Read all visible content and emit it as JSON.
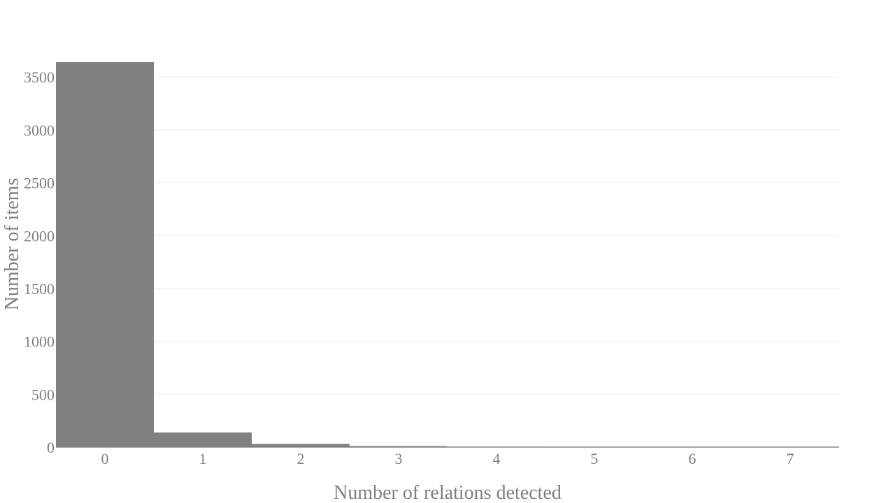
{
  "chart_data": {
    "type": "bar",
    "title": "",
    "xlabel": "Number of relations detected",
    "ylabel": "Number of items",
    "categories": [
      "0",
      "1",
      "2",
      "3",
      "4",
      "5",
      "6",
      "7"
    ],
    "values": [
      3640,
      138,
      30,
      10,
      4,
      2,
      1,
      1
    ],
    "ylim": [
      0,
      3640
    ],
    "yticks": [
      0,
      500,
      1000,
      1500,
      2000,
      2500,
      3000,
      3500
    ],
    "ytick_labels": [
      "0",
      "500",
      "1000",
      "1500",
      "2000",
      "2500",
      "3000",
      "3500"
    ],
    "grid": true,
    "legend": "none",
    "colors": {
      "bar": "#808080",
      "text": "#7f7f7f",
      "grid": "#eeeeee",
      "axis": "#888888"
    }
  }
}
